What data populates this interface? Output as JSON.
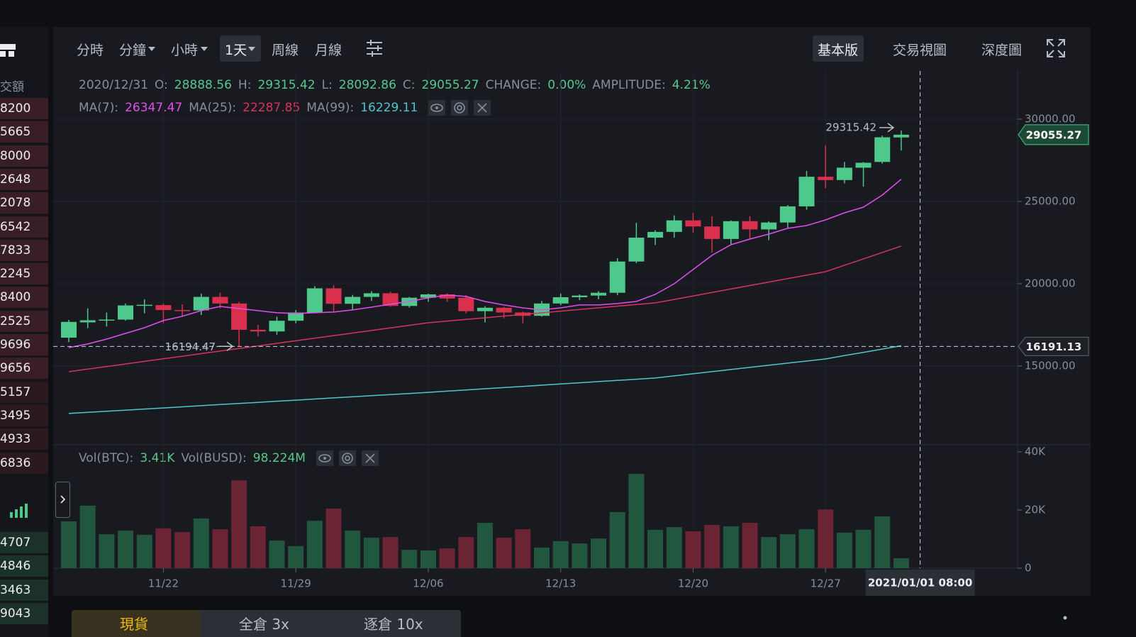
{
  "order_book": {
    "header": "交額",
    "rows": [
      "8200",
      "5665",
      "8000",
      "2648",
      "2078",
      "6542",
      "7833",
      "2245",
      "8400",
      "2525",
      "9696",
      "9656",
      "5157",
      "3495",
      "4933",
      "6836"
    ],
    "rows_lower": [
      "4707",
      "4846",
      "3463",
      "9043"
    ]
  },
  "toolbar": {
    "intervals": [
      "分時",
      "分鐘",
      "小時",
      "1天",
      "周線",
      "月線"
    ],
    "views": [
      "基本版",
      "交易視圖",
      "深度圖"
    ]
  },
  "info": {
    "date": "2020/12/31",
    "o": "O:",
    "h": "H:",
    "l": "L:",
    "c": "C:",
    "change_label": "CHANGE:",
    "change": "0.00%",
    "amplitude_label": "AMPLITUDE:",
    "amplitude": "4.21%"
  },
  "volume_info": {
    "btc_label": "Vol(BTC):",
    "btc": "3.41K",
    "busd_label": "Vol(BUSD):",
    "busd": "98.224M"
  },
  "tabs": [
    "現貨",
    "全倉 3x",
    "逐倉 10x"
  ],
  "chart_data": {
    "type": "candlestick",
    "categories": [
      null,
      null,
      null,
      null,
      null,
      "11/22",
      null,
      null,
      null,
      null,
      null,
      null,
      "11/29",
      null,
      null,
      null,
      null,
      null,
      null,
      "12/06",
      null,
      null,
      null,
      null,
      null,
      null,
      "12/13",
      null,
      null,
      null,
      null,
      null,
      null,
      "12/20",
      null,
      null,
      null,
      null,
      null,
      null,
      "12/27",
      null,
      null,
      null,
      null
    ],
    "open": [
      16720,
      17650,
      17800,
      17820,
      18680,
      18700,
      18400,
      18380,
      19200,
      18800,
      17200,
      17100,
      17750,
      18250,
      19720,
      18780,
      19200,
      19420,
      18650,
      19150,
      19350,
      19150,
      18330,
      18540,
      18250,
      18050,
      18800,
      19180,
      19280,
      19450,
      21350,
      22800,
      23150,
      23850,
      23480,
      22720,
      23800,
      23300,
      23720,
      24700,
      26500,
      26300,
      27050,
      27400,
      28888.56
    ],
    "high": [
      17800,
      18500,
      18250,
      18800,
      19050,
      18800,
      18750,
      19400,
      19450,
      18900,
      17500,
      18000,
      18400,
      19850,
      19900,
      19320,
      19550,
      19520,
      19200,
      19400,
      19420,
      19300,
      18630,
      18600,
      18300,
      18950,
      19400,
      19350,
      19550,
      21550,
      23700,
      23250,
      24150,
      24300,
      24100,
      23850,
      24100,
      23800,
      24780,
      26850,
      28400,
      27400,
      27400,
      29000,
      29315.42
    ],
    "low": [
      16450,
      17300,
      17400,
      17750,
      18200,
      17600,
      18000,
      18100,
      18500,
      16194.47,
      16800,
      16900,
      17600,
      18200,
      18300,
      18400,
      18950,
      18600,
      18550,
      18900,
      18900,
      18200,
      17650,
      17900,
      17600,
      18000,
      18700,
      19000,
      19050,
      19300,
      21250,
      22350,
      22800,
      23100,
      21900,
      22400,
      22700,
      22650,
      23400,
      24500,
      25800,
      26100,
      25900,
      27300,
      28092.86
    ],
    "close": [
      17680,
      17780,
      17820,
      18680,
      18720,
      18400,
      18380,
      19200,
      18800,
      17200,
      17100,
      17750,
      18250,
      19720,
      18780,
      19200,
      19420,
      18650,
      19150,
      19350,
      19100,
      18330,
      18540,
      18250,
      18050,
      18800,
      19180,
      19280,
      19450,
      21350,
      22800,
      23150,
      23850,
      23480,
      22720,
      23800,
      23300,
      23720,
      24700,
      26500,
      26300,
      27050,
      27350,
      28900,
      29055.27
    ],
    "colors": {
      "up": "#4fc98b",
      "down": "#d9304e"
    },
    "ma": [
      {
        "name": "MA(7):",
        "color": "#e04ef0",
        "values": [
          16121,
          16337,
          16638,
          16983,
          17328,
          17760,
          18018,
          18363,
          18621,
          18492,
          18363,
          18234,
          18191,
          18234,
          18277,
          18406,
          18578,
          18751,
          18923,
          19139,
          19311,
          19225,
          18923,
          18708,
          18535,
          18406,
          18535,
          18708,
          18708,
          18794,
          18923,
          19354,
          20000,
          20862,
          21725,
          22371,
          22716,
          23018,
          23363,
          23535,
          23880,
          24311,
          24656,
          25388,
          26347.47
        ]
      },
      {
        "name": "MA(25):",
        "color": "#d8325e",
        "values": [
          14655,
          14812,
          14968,
          15125,
          15281,
          15438,
          15594,
          15751,
          15907,
          16064,
          16220,
          16377,
          16533,
          16690,
          16846,
          17003,
          17159,
          17316,
          17472,
          17629,
          17730,
          17830,
          17931,
          18031,
          18132,
          18232,
          18333,
          18434,
          18534,
          18635,
          18735,
          18836,
          19047,
          19258,
          19469,
          19679,
          19890,
          20101,
          20311,
          20522,
          20733,
          21122,
          21511,
          21899,
          22287.85
        ]
      },
      {
        "name": "MA(99):",
        "color": "#4ec6cb",
        "values": [
          12115,
          12183,
          12250,
          12318,
          12386,
          12453,
          12521,
          12588,
          12656,
          12724,
          12791,
          12859,
          12926,
          12994,
          13062,
          13129,
          13197,
          13264,
          13332,
          13400,
          13473,
          13545,
          13618,
          13690,
          13763,
          13835,
          13908,
          13980,
          14053,
          14125,
          14198,
          14270,
          14399,
          14528,
          14657,
          14786,
          14915,
          15044,
          15173,
          15302,
          15430,
          15630,
          15830,
          16030,
          16229.11
        ]
      }
    ],
    "ylim": [
      10300,
      32930
    ],
    "yticks": [
      {
        "value": 15000,
        "label": "15000.00"
      },
      {
        "value": 20000,
        "label": "20000.00"
      },
      {
        "value": 25000,
        "label": "25000.00"
      },
      {
        "value": 30000,
        "label": "30000.00"
      }
    ],
    "grid": true,
    "crosshair": {
      "price": 16191.13,
      "time": "2021/01/01 08:00"
    },
    "volume": {
      "values": [
        16100,
        21500,
        11700,
        12900,
        11500,
        13700,
        12400,
        17100,
        13400,
        30200,
        14400,
        9500,
        7600,
        16300,
        20500,
        12900,
        10500,
        10700,
        6300,
        6100,
        6800,
        10700,
        15600,
        10500,
        13400,
        7100,
        9300,
        8500,
        10200,
        19300,
        32400,
        13200,
        14100,
        12700,
        14900,
        14400,
        15600,
        10700,
        11700,
        13400,
        20200,
        12200,
        13200,
        17800,
        3410
      ],
      "colors": {
        "up": "#22573f",
        "down": "#6a2434"
      },
      "ylim": [
        0,
        41700
      ],
      "yticks": [
        0,
        {
          "value": 20000,
          "label": "20K"
        },
        {
          "value": 40000,
          "label": "40K"
        }
      ]
    }
  }
}
